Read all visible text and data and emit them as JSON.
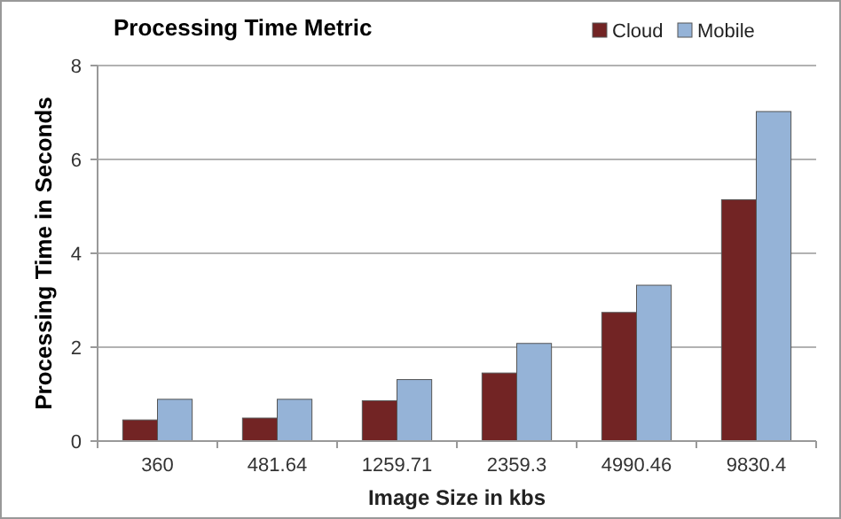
{
  "chart_data": {
    "type": "bar",
    "title": "Processing Time Metric",
    "xlabel": "Image Size in kbs",
    "ylabel": "Processing Time in Seconds",
    "categories": [
      "360",
      "481.64",
      "1259.71",
      "2359.3",
      "4990.46",
      "9830.4"
    ],
    "series": [
      {
        "name": "Cloud",
        "color": "#722424",
        "values": [
          0.45,
          0.49,
          0.86,
          1.45,
          2.74,
          5.14
        ]
      },
      {
        "name": "Mobile",
        "color": "#95b3d7",
        "values": [
          0.89,
          0.89,
          1.31,
          2.08,
          3.32,
          7.02
        ]
      }
    ],
    "ylim": [
      0,
      8
    ],
    "yticks": [
      0,
      2,
      4,
      6,
      8
    ],
    "grid": "y",
    "legend": "top right"
  }
}
